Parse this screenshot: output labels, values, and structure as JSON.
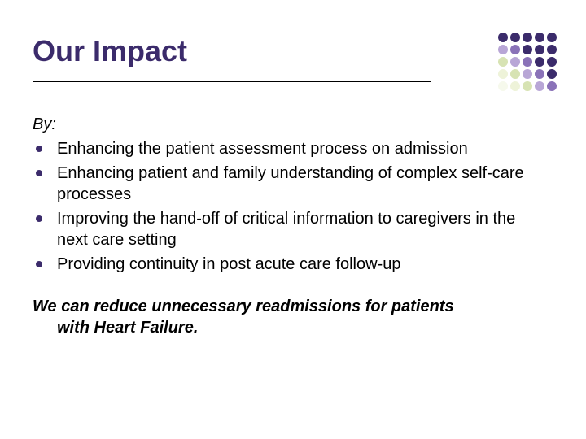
{
  "title": {
    "text": "Our Impact",
    "color": "#3b2b6b",
    "fontsize": 36
  },
  "intro": "By:",
  "bullets": [
    "Enhancing the patient assessment process on admission",
    "Enhancing patient and family understanding of complex self-care processes",
    "Improving the hand-off of critical information to caregivers in the next care setting",
    "Providing continuity in post acute care follow-up"
  ],
  "conclusion_line1": "We can reduce unnecessary readmissions for patients",
  "conclusion_line2": "with Heart Failure.",
  "body_fontsize": 20,
  "bullet_color": "#3b2b6b",
  "background_color": "#ffffff",
  "dot_grid": {
    "rows": 5,
    "cols": 5,
    "cell_size": 12,
    "gap": 3,
    "colors": [
      [
        "#3b2b6b",
        "#3b2b6b",
        "#3b2b6b",
        "#3b2b6b",
        "#3b2b6b"
      ],
      [
        "#b8a6d6",
        "#8a72b8",
        "#3b2b6b",
        "#3b2b6b",
        "#3b2b6b"
      ],
      [
        "#d7e3b3",
        "#b8a6d6",
        "#8a72b8",
        "#3b2b6b",
        "#3b2b6b"
      ],
      [
        "#eef3d9",
        "#d7e3b3",
        "#b8a6d6",
        "#8a72b8",
        "#3b2b6b"
      ],
      [
        "#f6f9ec",
        "#eef3d9",
        "#d7e3b3",
        "#b8a6d6",
        "#8a72b8"
      ]
    ]
  }
}
